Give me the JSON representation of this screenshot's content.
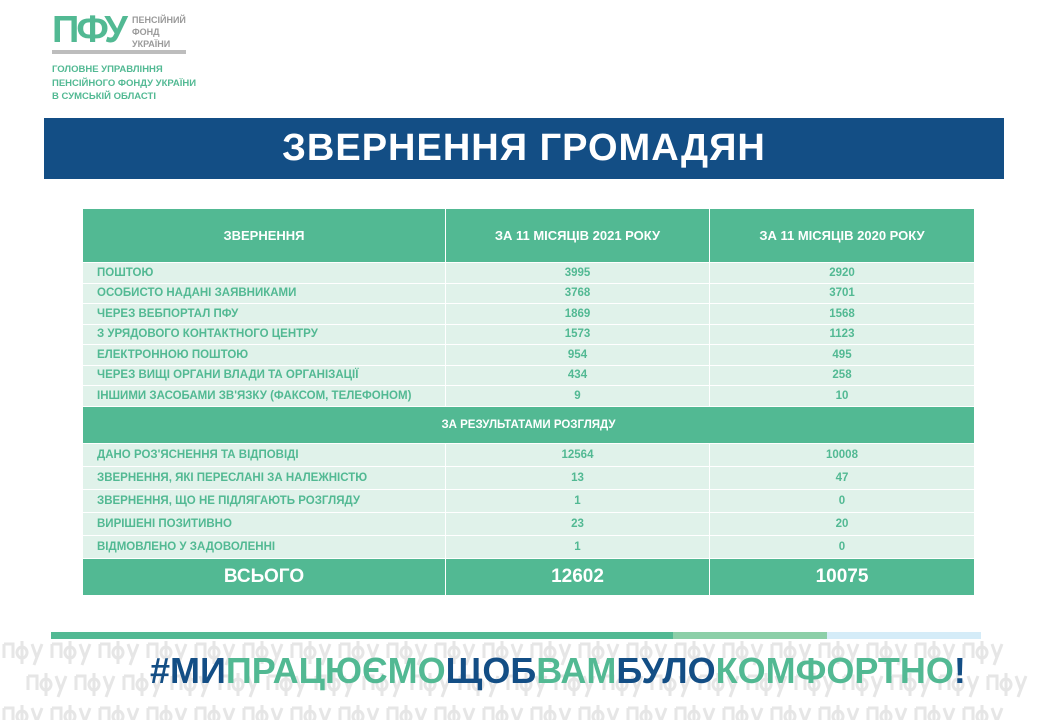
{
  "logo": {
    "mark": "ПФУ",
    "text": "ПЕНСІЙНИЙ\nФОНД\nУКРАЇНИ"
  },
  "department": "ГОЛОВНЕ УПРАВЛІННЯ\nПЕНСІЙНОГО ФОНДУ УКРАЇНИ\nВ СУМСЬКІЙ ОБЛАСТІ",
  "title": "ЗВЕРНЕННЯ ГРОМАДЯН",
  "table": {
    "headers": [
      "ЗВЕРНЕННЯ",
      "ЗА 11 МІСЯЦІВ 2021 РОКУ",
      "ЗА 11 МІСЯЦІВ 2020 РОКУ"
    ],
    "channels": [
      [
        "ПОШТОЮ",
        "3995",
        "2920"
      ],
      [
        "ОСОБИСТО НАДАНІ ЗАЯВНИКАМИ",
        "3768",
        "3701"
      ],
      [
        "ЧЕРЕЗ ВЕБПОРТАЛ ПФУ",
        "1869",
        "1568"
      ],
      [
        "З УРЯДОВОГО КОНТАКТНОГО ЦЕНТРУ",
        "1573",
        "1123"
      ],
      [
        "ЕЛЕКТРОННОЮ ПОШТОЮ",
        "954",
        "495"
      ],
      [
        "ЧЕРЕЗ ВИЩІ ОРГАНИ ВЛАДИ ТА ОРГАНІЗАЦІЇ",
        "434",
        "258"
      ],
      [
        "ІНШИМИ ЗАСОБАМИ ЗВ'ЯЗКУ (ФАКСОМ, ТЕЛЕФОНОМ)",
        "9",
        "10"
      ]
    ],
    "section": "ЗА РЕЗУЛЬТАТАМИ РОЗГЛЯДУ",
    "results": [
      [
        "ДАНО РОЗ'ЯСНЕННЯ ТА ВІДПОВІДІ",
        "12564",
        "10008"
      ],
      [
        "ЗВЕРНЕННЯ, ЯКІ ПЕРЕСЛАНІ ЗА НАЛЕЖНІСТЮ",
        "13",
        "47"
      ],
      [
        "ЗВЕРНЕННЯ, ЩО НЕ ПІДЛЯГАЮТЬ РОЗГЛЯДУ",
        "1",
        "0"
      ],
      [
        "ВИРІШЕНІ ПОЗИТИВНО",
        "23",
        "20"
      ],
      [
        "ВІДМОВЛЕНО У ЗАДОВОЛЕННІ",
        "1",
        "0"
      ]
    ],
    "total": [
      "ВСЬОГО",
      "12602",
      "10075"
    ]
  },
  "watermark": "пфу",
  "slogan": [
    {
      "text": "#МИ",
      "color": "#134e85"
    },
    {
      "text": "ПРАЦЮЄМО",
      "color": "#52b993"
    },
    {
      "text": "ЩОБ",
      "color": "#134e85"
    },
    {
      "text": "ВАМ",
      "color": "#52b993"
    },
    {
      "text": "БУЛО",
      "color": "#134e85"
    },
    {
      "text": "КОМФОРТНО",
      "color": "#52b993"
    },
    {
      "text": "!",
      "color": "#134e85"
    }
  ],
  "colors": {
    "green": "#52b993",
    "blue": "#134e85",
    "row": "#e0f2ea"
  }
}
